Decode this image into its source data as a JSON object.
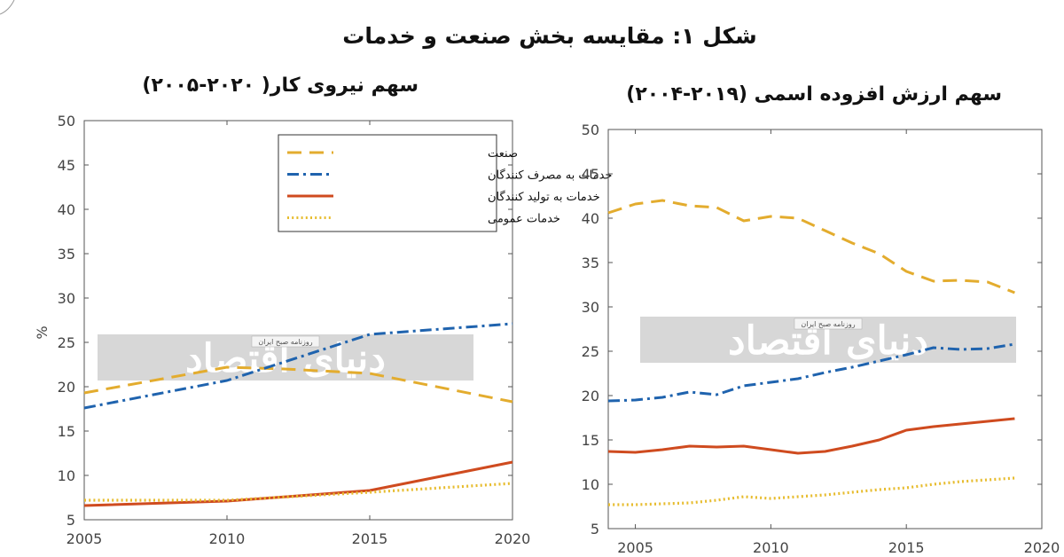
{
  "figure_title": "شکل ۱: مقایسه بخش صنعت و خدمات",
  "colors": {
    "industry": "#E3AC2E",
    "consumer_services": "#1F63AE",
    "producer_services": "#CF4B1F",
    "public_services": "#E7BC2E",
    "axis": "#555555",
    "watermark": "#d0d0d0"
  },
  "watermark": {
    "text": "دنیای اقتصاد",
    "tagline": "روزنامه صبح ایران"
  },
  "legend": [
    {
      "key": "industry",
      "label": "صنعت"
    },
    {
      "key": "consumer_services",
      "label": "خدمات به مصرف کنندگان"
    },
    {
      "key": "producer_services",
      "label": "خدمات به تولید کنندگان"
    },
    {
      "key": "public_services",
      "label": "خدمات عمومی"
    }
  ],
  "chart_data": [
    {
      "type": "line",
      "title": "سهم نیروی کار( ۲۰۲۰-۲۰۰۵)",
      "ylabel": "%",
      "xlim": [
        2005,
        2020
      ],
      "ylim": [
        5,
        50
      ],
      "x_ticks": [
        2005,
        2010,
        2015,
        2020
      ],
      "y_ticks": [
        5,
        10,
        15,
        20,
        25,
        30,
        35,
        40,
        45,
        50
      ],
      "legend_position": "top-right",
      "grid": false,
      "series": [
        {
          "key": "industry",
          "name": "صنعت",
          "style": "dashed",
          "x": [
            2005,
            2010,
            2012,
            2015,
            2020
          ],
          "y": [
            19.3,
            22.2,
            22.0,
            21.5,
            18.3
          ]
        },
        {
          "key": "consumer_services",
          "name": "خدمات به مصرف کنندگان",
          "style": "dashdot",
          "x": [
            2005,
            2010,
            2015,
            2020
          ],
          "y": [
            17.6,
            20.7,
            25.9,
            27.1
          ]
        },
        {
          "key": "producer_services",
          "name": "خدمات به تولید کنندگان",
          "style": "solid",
          "x": [
            2005,
            2010,
            2015,
            2020
          ],
          "y": [
            6.6,
            7.1,
            8.3,
            11.5
          ]
        },
        {
          "key": "public_services",
          "name": "خدمات عمومی",
          "style": "dotted",
          "x": [
            2005,
            2010,
            2015,
            2020
          ],
          "y": [
            7.2,
            7.2,
            8.1,
            9.1
          ]
        }
      ]
    },
    {
      "type": "line",
      "title": "سهم ارزش افزوده اسمی (۲۰۱۹-۲۰۰۴)",
      "xlim": [
        2004,
        2020
      ],
      "ylim": [
        5,
        50
      ],
      "x_ticks": [
        2005,
        2010,
        2015,
        2020
      ],
      "y_ticks": [
        5,
        10,
        15,
        20,
        25,
        30,
        35,
        40,
        45,
        50
      ],
      "grid": false,
      "series": [
        {
          "key": "industry",
          "style": "dashed",
          "x": [
            2004,
            2005,
            2006,
            2007,
            2008,
            2009,
            2010,
            2011,
            2012,
            2013,
            2014,
            2015,
            2016,
            2017,
            2018,
            2019
          ],
          "y": [
            40.6,
            41.6,
            42.0,
            41.4,
            41.2,
            39.7,
            40.2,
            40.0,
            38.6,
            37.2,
            36.0,
            34.0,
            32.9,
            33.0,
            32.8,
            31.6
          ]
        },
        {
          "key": "consumer_services",
          "style": "dashdot",
          "x": [
            2004,
            2005,
            2006,
            2007,
            2008,
            2009,
            2010,
            2011,
            2012,
            2013,
            2014,
            2015,
            2016,
            2017,
            2018,
            2019
          ],
          "y": [
            19.4,
            19.5,
            19.8,
            20.4,
            20.1,
            21.1,
            21.5,
            21.9,
            22.6,
            23.2,
            23.9,
            24.6,
            25.4,
            25.2,
            25.3,
            25.8
          ]
        },
        {
          "key": "producer_services",
          "style": "solid",
          "x": [
            2004,
            2005,
            2006,
            2007,
            2008,
            2009,
            2010,
            2011,
            2012,
            2013,
            2014,
            2015,
            2016,
            2017,
            2018,
            2019
          ],
          "y": [
            13.7,
            13.6,
            13.9,
            14.3,
            14.2,
            14.3,
            13.9,
            13.5,
            13.7,
            14.3,
            15.0,
            16.1,
            16.5,
            16.8,
            17.1,
            17.4
          ]
        },
        {
          "key": "public_services",
          "style": "dotted",
          "x": [
            2004,
            2005,
            2006,
            2007,
            2008,
            2009,
            2010,
            2011,
            2012,
            2013,
            2014,
            2015,
            2016,
            2017,
            2018,
            2019
          ],
          "y": [
            7.7,
            7.7,
            7.8,
            7.9,
            8.2,
            8.6,
            8.4,
            8.6,
            8.8,
            9.1,
            9.4,
            9.6,
            10.0,
            10.3,
            10.5,
            10.7
          ]
        }
      ]
    }
  ]
}
